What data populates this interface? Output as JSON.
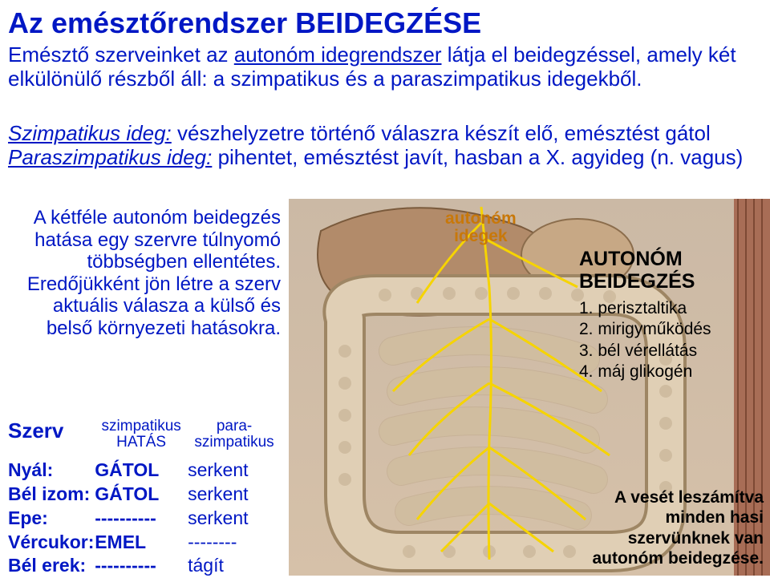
{
  "title": "Az emésztőrendszer BEIDEGZÉSE",
  "intro": {
    "pre": "Emésztő szerveinket az ",
    "ul1": "autonóm idegrendszer",
    "mid": " látja el beidegzéssel, amely két elkülönülő részből áll: a szimpatikus és a paraszimpatikus idegekből."
  },
  "defs": {
    "l1_label": "Szimpatikus ideg:",
    "l1_text": " vészhelyzetre történő válaszra készít elő, emésztést gátol",
    "l2_label": "Paraszimpatikus ideg:",
    "l2_text": " pihentet, emésztést javít, hasban a X. agyideg (n. vagus)"
  },
  "leftblock": "A kétféle autonóm beidegzés hatása egy szervre túlnyomó többségben ellentétes. Eredőjükként jön létre a szerv aktuális válasza a külső és belső környezeti hatásokra.",
  "table": {
    "head_organ": "Szerv",
    "head_symp1": "szimpatikus",
    "head_symp2": "HATÁS",
    "head_para1": "para-",
    "head_para2": "szimpatikus",
    "rows": [
      {
        "organ": "Nyál:",
        "symp": "GÁTOL",
        "para": "serkent"
      },
      {
        "organ": "Bél izom:",
        "symp": "GÁTOL",
        "para": "serkent"
      },
      {
        "organ": "Epe:",
        "symp": "----------",
        "para": "serkent"
      },
      {
        "organ": "Vércukor:",
        "symp": "EMEL",
        "para": "--------"
      },
      {
        "organ": "Bél erek:",
        "symp": "----------",
        "para": "tágít"
      }
    ]
  },
  "illus": {
    "intestine_fill": "#e0cfb5",
    "intestine_stroke": "#9e8664",
    "liver_fill": "#b28b6a",
    "nerve_color": "#f6d400",
    "nerve_width": 3,
    "bg_top": "#cbb9a5",
    "bg_bot": "#d6c1a9"
  },
  "labels": {
    "auton1": "autonóm",
    "auton2": "idegek",
    "right_title": "AUTONÓM BEIDEGZÉS",
    "right_list": [
      "1. perisztaltika",
      "2. mirigyműködés",
      "3. bél vérellátás",
      "4. máj glikogén"
    ],
    "bottom_right": "A vesét leszámítva minden hasi szervünknek van autonóm beidegzése."
  }
}
